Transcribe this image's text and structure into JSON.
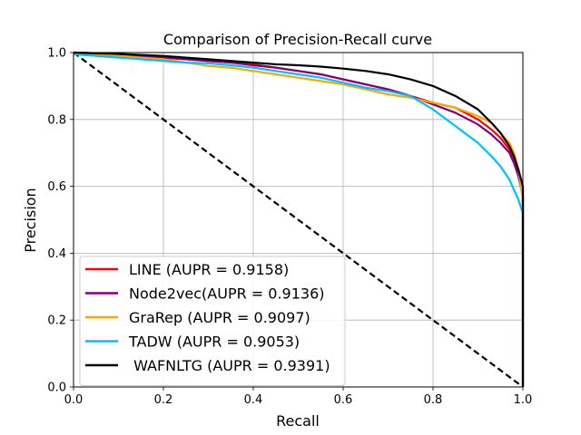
{
  "chart_data": {
    "type": "line",
    "title": "Comparison of Precision-Recall curve",
    "xlabel": "Recall",
    "ylabel": "Precision",
    "xlim": [
      0,
      1
    ],
    "ylim": [
      0,
      1
    ],
    "xticks": [
      "0.0",
      "0.2",
      "0.4",
      "0.6",
      "0.8",
      "1.0"
    ],
    "yticks": [
      "0.0",
      "0.2",
      "0.4",
      "0.6",
      "0.8",
      "1.0"
    ],
    "grid": true,
    "legend_position": "lower-left",
    "series": [
      {
        "name": "LINE (AUPR = 0.9158)",
        "color": "#ff0000",
        "x": [
          0.0,
          0.05,
          0.1,
          0.15,
          0.2,
          0.25,
          0.3,
          0.35,
          0.4,
          0.45,
          0.5,
          0.55,
          0.6,
          0.65,
          0.7,
          0.75,
          0.8,
          0.85,
          0.9,
          0.93,
          0.95,
          0.97,
          0.98,
          0.99,
          1.0,
          1.0
        ],
        "y": [
          1.0,
          0.998,
          0.995,
          0.99,
          0.985,
          0.98,
          0.975,
          0.97,
          0.965,
          0.955,
          0.945,
          0.935,
          0.92,
          0.905,
          0.89,
          0.87,
          0.85,
          0.835,
          0.8,
          0.77,
          0.745,
          0.71,
          0.68,
          0.64,
          0.58,
          0.0
        ]
      },
      {
        "name": "Node2vec(AUPR = 0.9136)",
        "color": "#800080",
        "x": [
          0.0,
          0.05,
          0.1,
          0.15,
          0.2,
          0.25,
          0.3,
          0.35,
          0.4,
          0.45,
          0.5,
          0.55,
          0.6,
          0.65,
          0.7,
          0.75,
          0.8,
          0.85,
          0.9,
          0.93,
          0.95,
          0.97,
          0.98,
          0.99,
          1.0,
          1.0
        ],
        "y": [
          1.0,
          0.998,
          0.995,
          0.99,
          0.985,
          0.98,
          0.975,
          0.97,
          0.962,
          0.955,
          0.945,
          0.935,
          0.92,
          0.905,
          0.89,
          0.87,
          0.845,
          0.82,
          0.785,
          0.755,
          0.73,
          0.7,
          0.67,
          0.63,
          0.57,
          0.0
        ]
      },
      {
        "name": "GraRep (AUPR = 0.9097)",
        "color": "#ffa500",
        "x": [
          0.0,
          0.05,
          0.1,
          0.15,
          0.2,
          0.25,
          0.3,
          0.35,
          0.4,
          0.45,
          0.5,
          0.55,
          0.6,
          0.65,
          0.7,
          0.75,
          0.8,
          0.85,
          0.9,
          0.93,
          0.95,
          0.97,
          0.98,
          0.99,
          1.0,
          1.0
        ],
        "y": [
          1.0,
          0.995,
          0.99,
          0.985,
          0.98,
          0.97,
          0.96,
          0.955,
          0.945,
          0.935,
          0.925,
          0.915,
          0.905,
          0.89,
          0.875,
          0.865,
          0.85,
          0.835,
          0.81,
          0.79,
          0.76,
          0.73,
          0.7,
          0.65,
          0.56,
          0.0
        ]
      },
      {
        "name": "TADW (AUPR = 0.9053)",
        "color": "#00bfff",
        "x": [
          0.0,
          0.05,
          0.1,
          0.15,
          0.2,
          0.25,
          0.3,
          0.35,
          0.4,
          0.45,
          0.5,
          0.55,
          0.6,
          0.65,
          0.7,
          0.75,
          0.8,
          0.85,
          0.9,
          0.93,
          0.95,
          0.97,
          0.98,
          0.99,
          1.0,
          1.0
        ],
        "y": [
          0.995,
          0.99,
          0.985,
          0.98,
          0.975,
          0.97,
          0.968,
          0.962,
          0.955,
          0.945,
          0.935,
          0.925,
          0.91,
          0.895,
          0.885,
          0.87,
          0.83,
          0.78,
          0.73,
          0.69,
          0.66,
          0.62,
          0.59,
          0.56,
          0.52,
          0.0
        ]
      },
      {
        "name": " WAFNLTG (AUPR = 0.9391)",
        "color": "#000000",
        "x": [
          0.0,
          0.05,
          0.1,
          0.15,
          0.2,
          0.25,
          0.3,
          0.35,
          0.4,
          0.45,
          0.5,
          0.55,
          0.6,
          0.65,
          0.7,
          0.75,
          0.8,
          0.85,
          0.9,
          0.93,
          0.95,
          0.97,
          0.98,
          0.99,
          1.0,
          1.0
        ],
        "y": [
          1.0,
          0.998,
          0.996,
          0.993,
          0.99,
          0.985,
          0.98,
          0.975,
          0.97,
          0.965,
          0.962,
          0.958,
          0.952,
          0.945,
          0.935,
          0.92,
          0.9,
          0.87,
          0.83,
          0.79,
          0.76,
          0.72,
          0.69,
          0.65,
          0.6,
          0.0
        ]
      }
    ],
    "reference_line": {
      "color": "#000000",
      "style": "dashed",
      "x": [
        0,
        1
      ],
      "y": [
        1,
        0
      ]
    }
  }
}
